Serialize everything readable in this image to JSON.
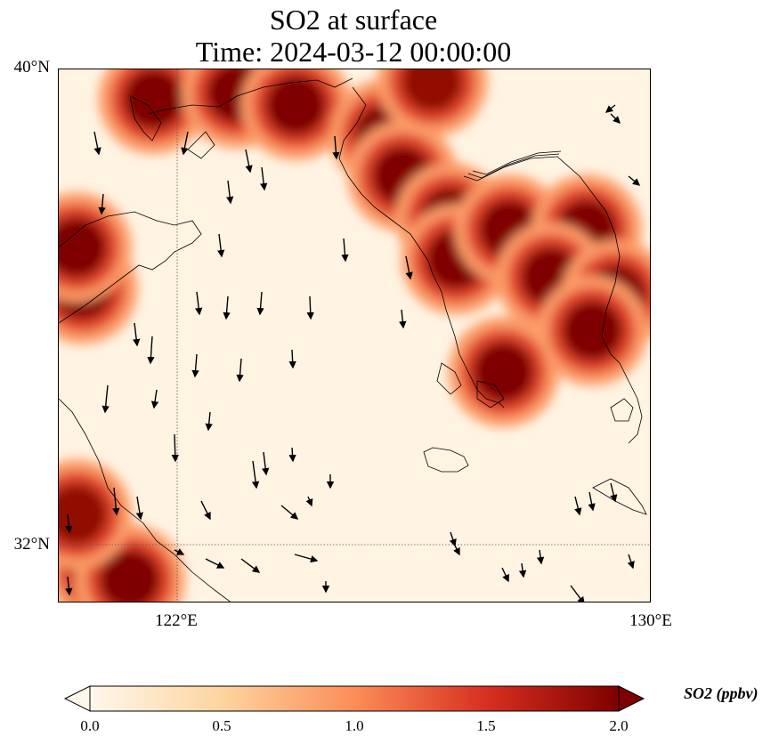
{
  "title_line1": "SO2 at surface",
  "title_line2": "Time: 2024-03-12 00:00:00",
  "lat_ticks": [
    "40°N",
    "32°N"
  ],
  "lon_ticks": [
    "122°E",
    "130°E"
  ],
  "extent": {
    "lon_min": 120,
    "lon_max": 130,
    "lat_min": 31,
    "lat_max": 40
  },
  "colorbar": {
    "label": "SO2 (ppbv)",
    "min": 0.0,
    "max": 2.0,
    "ticks": [
      "0.0",
      "0.5",
      "1.0",
      "1.5",
      "2.0"
    ],
    "extend": "both",
    "colormap": "OrRd",
    "colors": [
      "#fff7ec",
      "#fdd49e",
      "#fc8d59",
      "#d7301f",
      "#7f0000"
    ]
  },
  "field": {
    "variable": "SO2",
    "units": "ppbv",
    "high_regions": [
      {
        "lon": 120.4,
        "lat": 36.3,
        "value": 2.2
      },
      {
        "lon": 120.3,
        "lat": 37.0,
        "value": 2.0
      },
      {
        "lon": 121.6,
        "lat": 39.5,
        "value": 2.3
      },
      {
        "lon": 123.0,
        "lat": 39.6,
        "value": 2.3
      },
      {
        "lon": 124.0,
        "lat": 39.4,
        "value": 2.2
      },
      {
        "lon": 125.5,
        "lat": 38.9,
        "value": 2.3
      },
      {
        "lon": 125.8,
        "lat": 38.2,
        "value": 2.3
      },
      {
        "lon": 126.6,
        "lat": 37.5,
        "value": 2.3
      },
      {
        "lon": 126.7,
        "lat": 36.8,
        "value": 2.0
      },
      {
        "lon": 126.3,
        "lat": 39.8,
        "value": 1.9
      },
      {
        "lon": 127.6,
        "lat": 37.3,
        "value": 2.0
      },
      {
        "lon": 128.9,
        "lat": 37.3,
        "value": 2.0
      },
      {
        "lon": 128.3,
        "lat": 36.5,
        "value": 2.1
      },
      {
        "lon": 129.4,
        "lat": 36.2,
        "value": 2.1
      },
      {
        "lon": 129.0,
        "lat": 35.6,
        "value": 2.0
      },
      {
        "lon": 127.5,
        "lat": 34.9,
        "value": 2.2
      },
      {
        "lon": 120.7,
        "lat": 31.6,
        "value": 2.4
      },
      {
        "lon": 121.2,
        "lat": 31.4,
        "value": 2.3
      },
      {
        "lon": 120.3,
        "lat": 32.5,
        "value": 1.9
      }
    ]
  }
}
